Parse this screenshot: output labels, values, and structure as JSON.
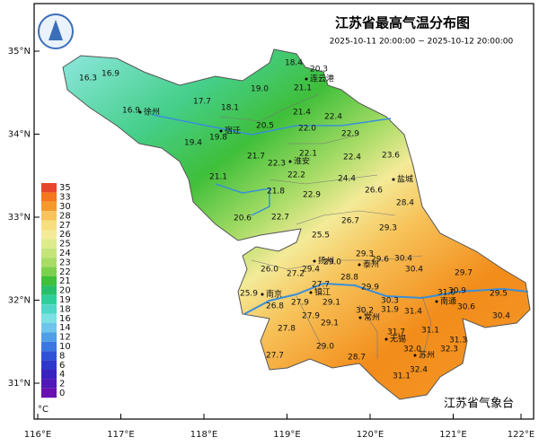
{
  "title": "江苏省最高气温分布图",
  "subtitle": "2025-10-11 20:00:00 ~ 2025-10-12 20:00:00",
  "footer": "江苏省气象台",
  "axes": {
    "lat": [
      {
        "value": 35,
        "label": "35°N"
      },
      {
        "value": 34,
        "label": "34°N"
      },
      {
        "value": 33,
        "label": "33°N"
      },
      {
        "value": 32,
        "label": "32°N"
      },
      {
        "value": 31,
        "label": "31°N"
      }
    ],
    "lon": [
      {
        "value": 116,
        "label": "116°E"
      },
      {
        "value": 117,
        "label": "117°E"
      },
      {
        "value": 118,
        "label": "118°E"
      },
      {
        "value": 119,
        "label": "119°E"
      },
      {
        "value": 120,
        "label": "120°E"
      },
      {
        "value": 121,
        "label": "121°E"
      },
      {
        "value": 122,
        "label": "122°E"
      }
    ]
  },
  "legend": {
    "unit": "°C",
    "items": [
      {
        "value": 35,
        "color": "#e8462c"
      },
      {
        "value": 33,
        "color": "#f5761c"
      },
      {
        "value": 30,
        "color": "#f59a2a"
      },
      {
        "value": 28,
        "color": "#f7c35a"
      },
      {
        "value": 27,
        "color": "#f8de7e"
      },
      {
        "value": 26,
        "color": "#f4ea98"
      },
      {
        "value": 25,
        "color": "#ddeb8c"
      },
      {
        "value": 24,
        "color": "#c4e47a"
      },
      {
        "value": 23,
        "color": "#a8dc66"
      },
      {
        "value": 22,
        "color": "#7dd04e"
      },
      {
        "value": 21,
        "color": "#3fbf3a"
      },
      {
        "value": 20,
        "color": "#27c06a"
      },
      {
        "value": 19,
        "color": "#2fcf9c"
      },
      {
        "value": 18,
        "color": "#4fd8c8"
      },
      {
        "value": 16,
        "color": "#7ce0e4"
      },
      {
        "value": 14,
        "color": "#6fc4ec"
      },
      {
        "value": 12,
        "color": "#4f9ee6"
      },
      {
        "value": 10,
        "color": "#3a78e0"
      },
      {
        "value": 8,
        "color": "#2f52d8"
      },
      {
        "value": 6,
        "color": "#2f36cc"
      },
      {
        "value": 4,
        "color": "#3a22c0"
      },
      {
        "value": 2,
        "color": "#5018b8"
      },
      {
        "value": 0,
        "color": "#6a10b0"
      }
    ]
  },
  "cities": [
    "连云港",
    "徐州",
    "宿迁",
    "淮安",
    "盐城",
    "扬州",
    "泰州",
    "南京",
    "镇江",
    "南通",
    "常州",
    "无锡",
    "苏州"
  ],
  "temperatures": [
    "16.3",
    "16.9",
    "18.4",
    "20.3",
    "19.0",
    "21.1",
    "17.7",
    "18.1",
    "16.9",
    "21.4",
    "22.4",
    "20.5",
    "22.0",
    "22.9",
    "19.8",
    "19.4",
    "21.7",
    "22.1",
    "22.3",
    "22.4",
    "23.6",
    "21.1",
    "22.2",
    "24.4",
    "21.8",
    "22.9",
    "26.6",
    "28.4",
    "20.6",
    "22.7",
    "26.7",
    "29.3",
    "25.5",
    "29.3",
    "30.4",
    "29.6",
    "26.0",
    "27.2",
    "29.4",
    "29.0",
    "28.8",
    "30.4",
    "29.7",
    "25.9",
    "27.7",
    "29.9",
    "31.0",
    "30.9",
    "29.5",
    "26.8",
    "27.9",
    "29.1",
    "30.3",
    "31.9",
    "31.4",
    "30.6",
    "30.2",
    "27.9",
    "29.1",
    "30.4",
    "27.8",
    "31.7",
    "31.1",
    "29.0",
    "31.3",
    "32.0",
    "32.3",
    "27.7",
    "28.7",
    "32.4",
    "31.1"
  ]
}
